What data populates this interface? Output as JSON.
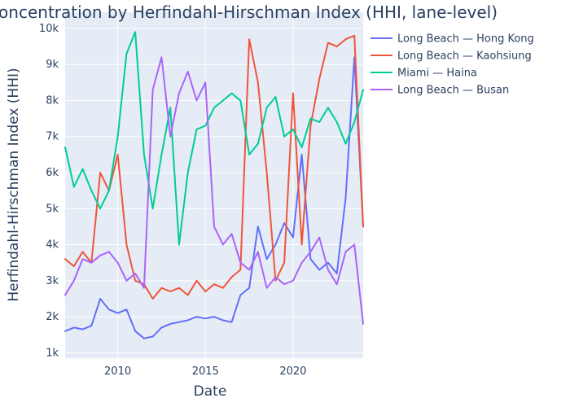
{
  "chart_data": {
    "type": "line",
    "title": "Market Concentration by Herfindahl-Hirschman Index (HHI, lane-level)",
    "xlabel": "Date",
    "ylabel": "Herfindahl-Hirschman Index (HHI)",
    "xlim": [
      2007.0,
      2024.0
    ],
    "ylim": [
      850,
      10450
    ],
    "grid": true,
    "legend_position": "top-right",
    "x_ticks": [
      2010,
      2015,
      2020
    ],
    "x_tick_labels": [
      "2010",
      "2015",
      "2020"
    ],
    "y_ticks": [
      1000,
      2000,
      3000,
      4000,
      5000,
      6000,
      7000,
      8000,
      9000,
      10000
    ],
    "y_tick_labels": [
      "1k",
      "2k",
      "3k",
      "4k",
      "5k",
      "6k",
      "7k",
      "8k",
      "9k",
      "10k"
    ],
    "x": [
      2007.0,
      2007.5,
      2008.0,
      2008.5,
      2009.0,
      2009.5,
      2010.0,
      2010.5,
      2011.0,
      2011.5,
      2012.0,
      2012.5,
      2013.0,
      2013.5,
      2014.0,
      2014.5,
      2015.0,
      2015.5,
      2016.0,
      2016.5,
      2017.0,
      2017.5,
      2018.0,
      2018.5,
      2019.0,
      2019.5,
      2020.0,
      2020.5,
      2021.0,
      2021.5,
      2022.0,
      2022.5,
      2023.0,
      2023.5,
      2024.0
    ],
    "series": [
      {
        "name": "Long Beach — Hong Kong",
        "color": "#636efa",
        "values": [
          1600,
          1700,
          1650,
          1750,
          2500,
          2200,
          2100,
          2200,
          1600,
          1400,
          1450,
          1700,
          1800,
          1850,
          1900,
          2000,
          1950,
          2000,
          1900,
          1850,
          2600,
          2800,
          4500,
          3600,
          4000,
          4600,
          4200,
          6500,
          3600,
          3300,
          3500,
          3200,
          5300,
          9200,
          4500
        ]
      },
      {
        "name": "Long Beach — Kaohsiung",
        "color": "#ef553b",
        "values": [
          3600,
          3400,
          3800,
          3500,
          6000,
          5500,
          6500,
          4000,
          3000,
          2900,
          2500,
          2800,
          2700,
          2800,
          2600,
          3000,
          2700,
          2900,
          2800,
          3100,
          3300,
          9700,
          8500,
          6000,
          3000,
          3500,
          8200,
          4000,
          7300,
          8600,
          9600,
          9500,
          9700,
          9800,
          4500
        ]
      },
      {
        "name": "Miami — Haina",
        "color": "#00cc96",
        "values": [
          6700,
          5600,
          6100,
          5500,
          5000,
          5500,
          7000,
          9300,
          9900,
          6500,
          5000,
          6500,
          7800,
          4000,
          6000,
          7200,
          7300,
          7800,
          8000,
          8200,
          8000,
          6500,
          6800,
          7800,
          8100,
          7000,
          7200,
          6700,
          7500,
          7400,
          7800,
          7400,
          6800,
          7400,
          8300
        ]
      },
      {
        "name": "Long Beach — Busan",
        "color": "#ab63fa",
        "values": [
          2600,
          3000,
          3600,
          3500,
          3700,
          3800,
          3500,
          3000,
          3200,
          2800,
          8300,
          9200,
          7000,
          8200,
          8800,
          8000,
          8500,
          4500,
          4000,
          4300,
          3500,
          3300,
          3800,
          2800,
          3100,
          2900,
          3000,
          3500,
          3800,
          4200,
          3300,
          2900,
          3800,
          4000,
          1800
        ]
      }
    ]
  }
}
